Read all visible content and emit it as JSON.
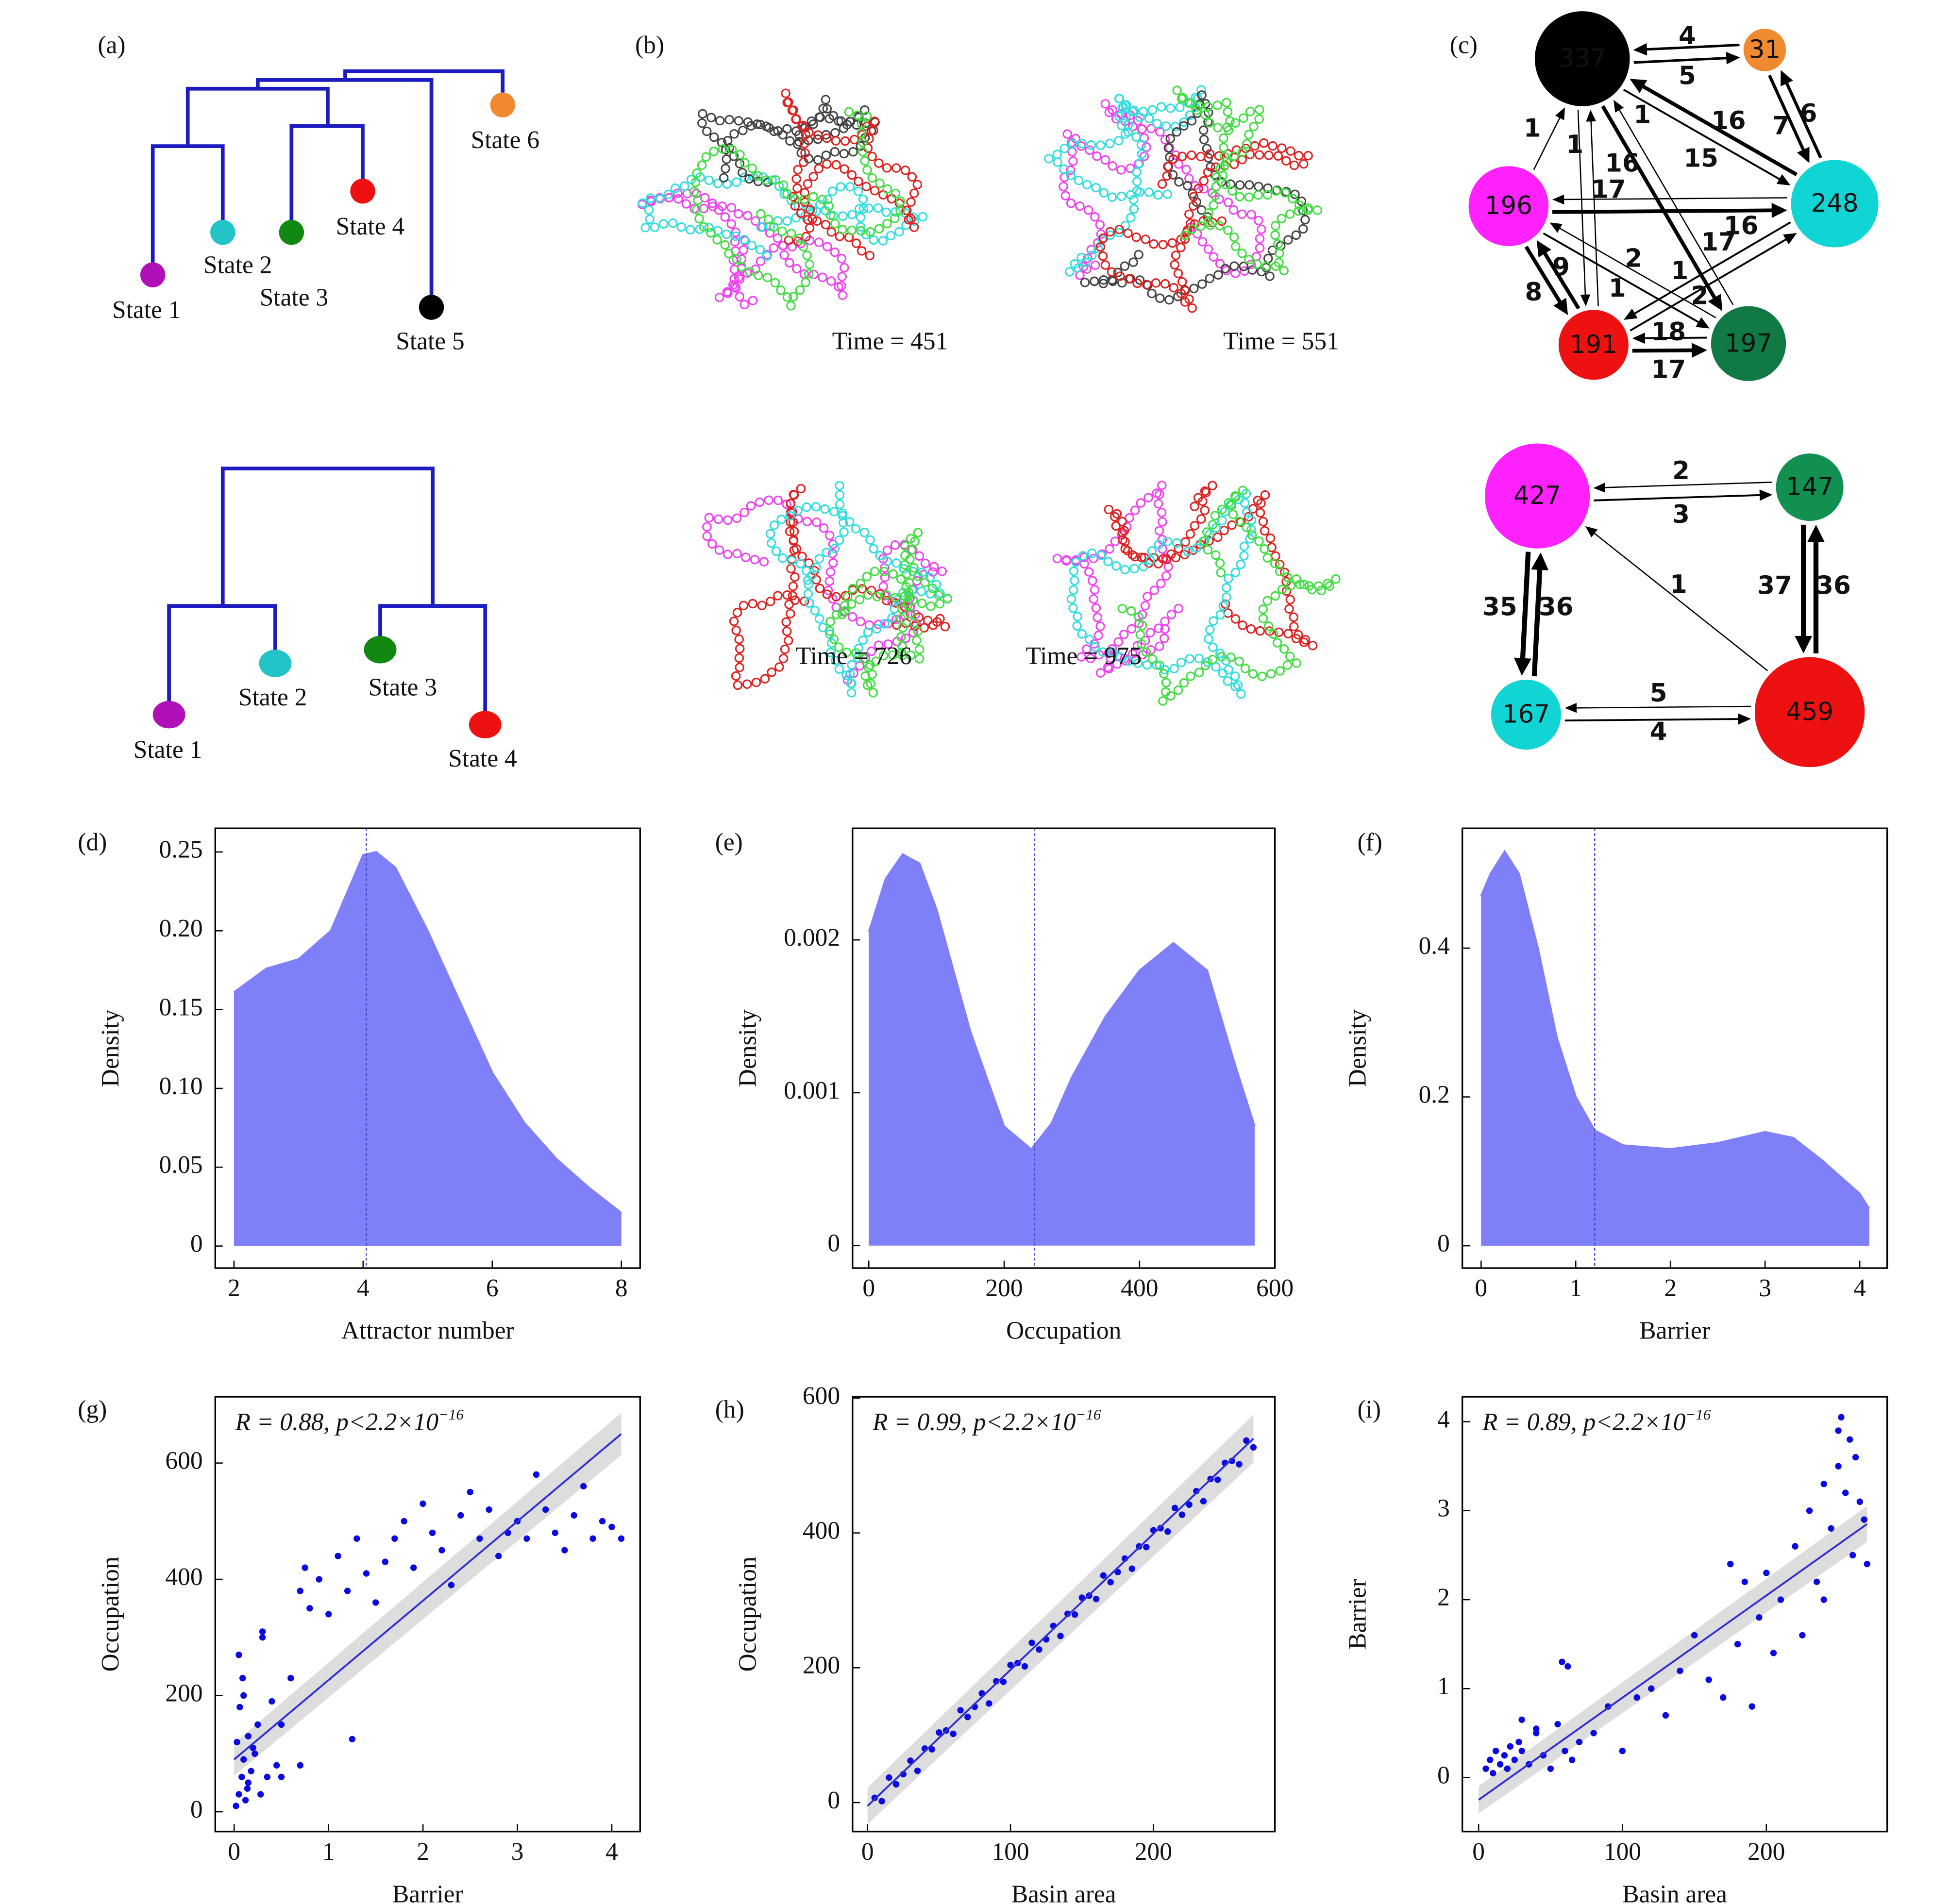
{
  "panel_labels": [
    "(a)",
    "(b)",
    "(c)",
    "(d)",
    "(e)",
    "(f)",
    "(g)",
    "(h)",
    "(i)"
  ],
  "dendrograms": [
    {
      "leaves": [
        {
          "label": "State 1",
          "color": "#b010b8"
        },
        {
          "label": "State 2",
          "color": "#22c4c8"
        },
        {
          "label": "State 3",
          "color": "#118811"
        },
        {
          "label": "State 4",
          "color": "#ee1111"
        },
        {
          "label": "State 5",
          "color": "#000000"
        },
        {
          "label": "State 6",
          "color": "#f08a30"
        }
      ]
    },
    {
      "leaves": [
        {
          "label": "State 1",
          "color": "#b010b8"
        },
        {
          "label": "State 2",
          "color": "#22c4c8"
        },
        {
          "label": "State 3",
          "color": "#118811"
        },
        {
          "label": "State 4",
          "color": "#ee1111"
        }
      ]
    }
  ],
  "trajectories": [
    {
      "time_label": "Time = 451",
      "colors": [
        "#ee44ee",
        "#33dddd",
        "#444444",
        "#dd2222",
        "#44dd44"
      ]
    },
    {
      "time_label": "Time = 551",
      "colors": [
        "#ee44ee",
        "#33dddd",
        "#444444",
        "#dd2222",
        "#44dd44"
      ]
    },
    {
      "time_label": "Time = 726",
      "colors": [
        "#ee44ee",
        "#dd2222",
        "#33dddd",
        "#44dd44"
      ]
    },
    {
      "time_label": "Time = 975",
      "colors": [
        "#ee44ee",
        "#dd2222",
        "#33dddd",
        "#44dd44"
      ]
    }
  ],
  "networks": [
    {
      "nodes": [
        {
          "label": "337",
          "color": "#000000"
        },
        {
          "label": "31",
          "color": "#f08a30"
        },
        {
          "label": "196",
          "color": "#ff22ff"
        },
        {
          "label": "248",
          "color": "#11d4d4"
        },
        {
          "label": "191",
          "color": "#ee1111"
        },
        {
          "label": "197",
          "color": "#117a44"
        }
      ],
      "edge_labels": [
        "4",
        "5",
        "1",
        "1",
        "1",
        "16",
        "16",
        "15",
        "7",
        "6",
        "17",
        "16",
        "17",
        "2",
        "2",
        "9",
        "8",
        "1",
        "1",
        "18",
        "17"
      ]
    },
    {
      "nodes": [
        {
          "label": "427",
          "color": "#ff22ff"
        },
        {
          "label": "147",
          "color": "#119050"
        },
        {
          "label": "167",
          "color": "#11d4d4"
        },
        {
          "label": "459",
          "color": "#ee1111"
        }
      ],
      "edge_labels": [
        "2",
        "3",
        "35",
        "36",
        "1",
        "37",
        "36",
        "5",
        "4"
      ]
    }
  ],
  "chart_data": [
    {
      "type": "area",
      "xlabel": "Attractor number",
      "ylabel": "Density",
      "color": "#7f7ff7",
      "x": [
        2,
        2.5,
        3,
        3.5,
        4,
        4.2,
        4.5,
        5,
        5.5,
        6,
        6.5,
        7,
        7.5,
        8
      ],
      "values": [
        0.161,
        0.176,
        0.182,
        0.2,
        0.248,
        0.25,
        0.24,
        0.2,
        0.155,
        0.11,
        0.078,
        0.055,
        0.037,
        0.021
      ],
      "vline": 4.05,
      "xlim": [
        1.71,
        8.29
      ],
      "ylim": [
        -0.014,
        0.265
      ],
      "xticks": [
        2,
        4,
        6,
        8
      ],
      "yticks": [
        0,
        0.05,
        {
          "value": 0.1,
          "label": "0.10"
        },
        0.15,
        {
          "value": 0.2,
          "label": "0.20"
        },
        0.25
      ]
    },
    {
      "type": "area",
      "xlabel": "Occupation",
      "ylabel": "Density",
      "color": "#7f7ff7",
      "x": [
        0,
        25,
        50,
        75,
        100,
        150,
        200,
        240,
        270,
        300,
        350,
        400,
        450,
        500,
        540,
        570
      ],
      "values": [
        0.00205,
        0.0024,
        0.00256,
        0.0025,
        0.0022,
        0.0014,
        0.00078,
        0.00063,
        0.0008,
        0.0011,
        0.0015,
        0.0018,
        0.00198,
        0.0018,
        0.0012,
        0.00078
      ],
      "vline": 245,
      "xlim": [
        -24,
        600
      ],
      "ylim": [
        -0.000147,
        0.00273
      ],
      "xticks": [
        0,
        200,
        400,
        600
      ],
      "yticks": [
        0,
        0.001,
        0.002
      ]
    },
    {
      "type": "area",
      "xlabel": "Barrier",
      "ylabel": "Density",
      "color": "#7f7ff7",
      "x": [
        0,
        0.1,
        0.25,
        0.4,
        0.6,
        0.8,
        1,
        1.2,
        1.5,
        2,
        2.5,
        3,
        3.3,
        3.6,
        4,
        4.1
      ],
      "values": [
        0.47,
        0.5,
        0.53,
        0.5,
        0.4,
        0.28,
        0.2,
        0.155,
        0.135,
        0.13,
        0.138,
        0.153,
        0.145,
        0.115,
        0.07,
        0.05
      ],
      "vline": 1.2,
      "xlim": [
        -0.198,
        4.29
      ],
      "ylim": [
        -0.03,
        0.561
      ],
      "xticks": [
        0,
        1,
        2,
        3,
        4
      ],
      "yticks": [
        0,
        0.2,
        0.4
      ]
    },
    {
      "type": "scatter",
      "xlabel": "Barrier",
      "ylabel": "Occupation",
      "color": "#0a0ae0",
      "fit_color": "#3030d0",
      "annotation": "R = 0.88, p<2.2×10",
      "annotation_exponent": "−16",
      "x": [
        0.02,
        0.05,
        0.08,
        0.1,
        0.12,
        0.15,
        0.03,
        0.06,
        0.09,
        0.14,
        0.18,
        0.22,
        0.25,
        0.3,
        0.05,
        0.1,
        0.15,
        0.2,
        0.28,
        0.35,
        0.4,
        0.45,
        0.5,
        0.6,
        0.7,
        0.75,
        0.8,
        0.9,
        1.0,
        1.1,
        1.2,
        1.3,
        1.4,
        1.5,
        1.6,
        1.7,
        1.8,
        1.9,
        2.0,
        2.1,
        2.2,
        2.3,
        2.4,
        2.5,
        2.6,
        2.7,
        2.8,
        2.9,
        3.0,
        3.1,
        3.2,
        3.3,
        3.4,
        3.5,
        3.6,
        3.7,
        3.8,
        3.9,
        4.0,
        4.1,
        0.3,
        0.5,
        0.7,
        1.25
      ],
      "values": [
        10,
        30,
        60,
        90,
        20,
        50,
        120,
        180,
        230,
        40,
        70,
        100,
        150,
        300,
        270,
        200,
        130,
        110,
        30,
        60,
        190,
        80,
        150,
        230,
        380,
        420,
        350,
        400,
        340,
        440,
        380,
        470,
        410,
        360,
        430,
        470,
        500,
        420,
        530,
        480,
        450,
        390,
        510,
        550,
        470,
        520,
        440,
        480,
        500,
        470,
        580,
        520,
        480,
        450,
        510,
        560,
        470,
        500,
        490,
        470,
        310,
        60,
        80,
        125
      ],
      "fit": {
        "x": [
          0,
          4.1
        ],
        "values": [
          90,
          650
        ]
      },
      "xlim": [
        -0.2,
        4.3
      ],
      "ylim": [
        -34,
        714
      ],
      "xticks": [
        0,
        1,
        2,
        3,
        4
      ],
      "yticks": [
        0,
        200,
        400,
        600
      ]
    },
    {
      "type": "scatter",
      "xlabel": "Basin area",
      "ylabel": "Occupation",
      "color": "#0a0ae0",
      "fit_color": "#3030d0",
      "annotation": "R = 0.99, p<2.2×10",
      "annotation_exponent": "−16",
      "x": [
        5,
        10,
        15,
        20,
        25,
        30,
        35,
        40,
        45,
        50,
        55,
        60,
        65,
        70,
        75,
        80,
        85,
        90,
        95,
        100,
        105,
        110,
        115,
        120,
        125,
        130,
        135,
        140,
        145,
        150,
        155,
        160,
        165,
        170,
        175,
        180,
        185,
        190,
        195,
        200,
        205,
        210,
        215,
        220,
        225,
        230,
        235,
        240,
        245,
        250,
        255,
        260,
        265,
        270
      ],
      "values": [
        7,
        2,
        37,
        27,
        42,
        62,
        47,
        80,
        79,
        104,
        107,
        102,
        137,
        127,
        142,
        162,
        147,
        180,
        179,
        204,
        207,
        202,
        237,
        227,
        242,
        262,
        247,
        280,
        279,
        304,
        307,
        302,
        337,
        327,
        342,
        362,
        347,
        380,
        379,
        404,
        407,
        402,
        437,
        427,
        442,
        462,
        447,
        480,
        479,
        504,
        507,
        502,
        537,
        527
      ],
      "fit": {
        "x": [
          0,
          270
        ],
        "values": [
          -5,
          540
        ]
      },
      "xlim": [
        -10.5,
        285
      ],
      "ylim": [
        -43,
        602
      ],
      "xticks": [
        0,
        100,
        200
      ],
      "yticks": [
        0,
        200,
        400,
        600
      ]
    },
    {
      "type": "scatter",
      "xlabel": "Basin area",
      "ylabel": "Barrier",
      "color": "#0a0ae0",
      "fit_color": "#3030d0",
      "annotation": "R = 0.89, p<2.2×10",
      "annotation_exponent": "−16",
      "x": [
        5,
        8,
        10,
        12,
        15,
        18,
        20,
        22,
        25,
        28,
        30,
        35,
        40,
        45,
        50,
        55,
        60,
        65,
        70,
        30,
        40,
        58,
        62,
        80,
        90,
        100,
        110,
        120,
        130,
        140,
        150,
        160,
        170,
        175,
        180,
        185,
        190,
        195,
        200,
        205,
        210,
        220,
        225,
        230,
        235,
        240,
        245,
        250,
        252,
        255,
        258,
        260,
        262,
        265,
        268,
        270,
        250,
        240
      ],
      "values": [
        0.1,
        0.2,
        0.05,
        0.3,
        0.15,
        0.25,
        0.1,
        0.35,
        0.2,
        0.4,
        0.3,
        0.15,
        0.5,
        0.25,
        0.1,
        0.6,
        0.3,
        0.2,
        0.4,
        0.65,
        0.55,
        1.3,
        1.25,
        0.5,
        0.8,
        0.3,
        0.9,
        1.0,
        0.7,
        1.2,
        1.6,
        1.1,
        0.9,
        2.4,
        1.5,
        2.2,
        0.8,
        1.8,
        2.3,
        1.4,
        2.0,
        2.6,
        1.6,
        3.0,
        2.2,
        3.3,
        2.8,
        3.5,
        4.05,
        3.2,
        3.8,
        2.5,
        3.6,
        3.1,
        2.9,
        2.4,
        3.9,
        2.0
      ],
      "fit": {
        "x": [
          0,
          270
        ],
        "values": [
          -0.25,
          2.85
        ]
      },
      "xlim": [
        -11.3,
        284
      ],
      "ylim": [
        -0.606,
        4.28
      ],
      "xticks": [
        0,
        100,
        200
      ],
      "yticks": [
        0,
        1,
        2,
        3,
        4
      ]
    }
  ]
}
